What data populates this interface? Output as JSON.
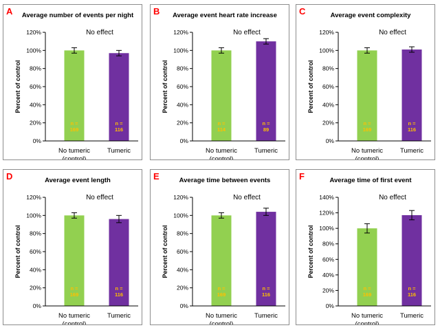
{
  "style": {
    "letter_color": "#ff0000",
    "control_color": "#92d050",
    "treatment_color": "#7030a0",
    "n_label_color": "#ffc000",
    "axis_color": "#000000",
    "gridline_color": "#d9d9d9",
    "text_color": "#000000"
  },
  "chart_data": [
    {
      "letter": "A",
      "type": "bar",
      "title": "Average number of events per night",
      "annotation": "No effect",
      "ylabel": "Percent of control",
      "ylim": [
        0,
        120
      ],
      "yticks": [
        "0%",
        "20%",
        "40%",
        "60%",
        "80%",
        "100%",
        "120%"
      ],
      "categories": [
        [
          "No tumeric",
          "(control)"
        ],
        [
          "Tumeric"
        ]
      ],
      "values": [
        100,
        97
      ],
      "errors": [
        3,
        3
      ],
      "n_labels": [
        [
          "n =",
          "169"
        ],
        [
          "n =",
          "116"
        ]
      ]
    },
    {
      "letter": "B",
      "type": "bar",
      "title": "Average event heart rate increase",
      "annotation": "No effect",
      "ylabel": "Percent of control",
      "ylim": [
        0,
        120
      ],
      "yticks": [
        "0%",
        "20%",
        "40%",
        "60%",
        "80%",
        "100%",
        "120%"
      ],
      "categories": [
        [
          "No tumeric",
          "(control)"
        ],
        [
          "Tumeric"
        ]
      ],
      "values": [
        100,
        110
      ],
      "errors": [
        3,
        3
      ],
      "n_labels": [
        [
          "n =",
          "114"
        ],
        [
          "n =",
          "89"
        ]
      ]
    },
    {
      "letter": "C",
      "type": "bar",
      "title": "Average event complexity",
      "annotation": "No effect",
      "ylabel": "Percent of control",
      "ylim": [
        0,
        120
      ],
      "yticks": [
        "0%",
        "20%",
        "40%",
        "60%",
        "80%",
        "100%",
        "120%"
      ],
      "categories": [
        [
          "No tumeric",
          "(control)"
        ],
        [
          "Tumeric"
        ]
      ],
      "values": [
        100,
        101
      ],
      "errors": [
        3,
        3
      ],
      "n_labels": [
        [
          "n =",
          "169"
        ],
        [
          "n =",
          "116"
        ]
      ]
    },
    {
      "letter": "D",
      "type": "bar",
      "title": "Average event length",
      "annotation": "No effect",
      "ylabel": "Percent of control",
      "ylim": [
        0,
        120
      ],
      "yticks": [
        "0%",
        "20%",
        "40%",
        "60%",
        "80%",
        "100%",
        "120%"
      ],
      "categories": [
        [
          "No tumeric",
          "(control)"
        ],
        [
          "Tumeric"
        ]
      ],
      "values": [
        100,
        96
      ],
      "errors": [
        3,
        4
      ],
      "n_labels": [
        [
          "n =",
          "169"
        ],
        [
          "n =",
          "116"
        ]
      ]
    },
    {
      "letter": "E",
      "type": "bar",
      "title": "Average time between events",
      "annotation": "No effect",
      "ylabel": "Percent of control",
      "ylim": [
        0,
        120
      ],
      "yticks": [
        "0%",
        "20%",
        "40%",
        "60%",
        "80%",
        "100%",
        "120%"
      ],
      "categories": [
        [
          "No tumeric",
          "(control)"
        ],
        [
          "Tumeric"
        ]
      ],
      "values": [
        100,
        104
      ],
      "errors": [
        3,
        4
      ],
      "n_labels": [
        [
          "n =",
          "169"
        ],
        [
          "n =",
          "116"
        ]
      ]
    },
    {
      "letter": "F",
      "type": "bar",
      "title": "Average time of first event",
      "annotation": "No effect",
      "ylabel": "Percent of control",
      "ylim": [
        0,
        140
      ],
      "yticks": [
        "0%",
        "20%",
        "40%",
        "60%",
        "80%",
        "100%",
        "120%",
        "140%"
      ],
      "categories": [
        [
          "No tumeric",
          "(control)"
        ],
        [
          "Tumeric"
        ]
      ],
      "values": [
        100,
        117
      ],
      "errors": [
        6,
        6
      ],
      "n_labels": [
        [
          "n =",
          "169"
        ],
        [
          "n =",
          "116"
        ]
      ]
    }
  ]
}
